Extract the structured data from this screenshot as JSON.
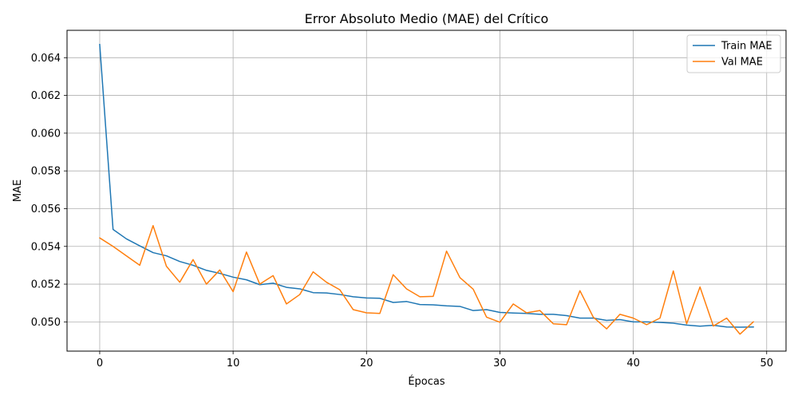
{
  "chart_data": {
    "type": "line",
    "title": "Error Absoluto Medio (MAE) del Crítico",
    "xlabel": "Épocas",
    "ylabel": "MAE",
    "xlim": [
      -2.45,
      51.45
    ],
    "ylim": [
      0.04845,
      0.06545
    ],
    "xticks": [
      0,
      10,
      20,
      30,
      40,
      50
    ],
    "yticks": [
      0.05,
      0.052,
      0.054,
      0.056,
      0.058,
      0.06,
      0.062,
      0.064
    ],
    "xtick_labels": [
      "0",
      "10",
      "20",
      "30",
      "40",
      "50"
    ],
    "ytick_labels": [
      "0.050",
      "0.052",
      "0.054",
      "0.056",
      "0.058",
      "0.060",
      "0.062",
      "0.064"
    ],
    "grid": true,
    "legend_position": "top-right",
    "series": [
      {
        "name": "Train MAE",
        "color": "#1f77b4",
        "x": [
          0,
          1,
          2,
          3,
          4,
          5,
          6,
          7,
          8,
          9,
          10,
          11,
          12,
          13,
          14,
          15,
          16,
          17,
          18,
          19,
          20,
          21,
          22,
          23,
          24,
          25,
          26,
          27,
          28,
          29,
          30,
          31,
          32,
          33,
          34,
          35,
          36,
          37,
          38,
          39,
          40,
          41,
          42,
          43,
          44,
          45,
          46,
          47,
          48,
          49
        ],
        "values": [
          0.0647,
          0.0549,
          0.0544,
          0.05403,
          0.05367,
          0.0535,
          0.0532,
          0.053,
          0.05273,
          0.05257,
          0.05237,
          0.05223,
          0.05197,
          0.05205,
          0.05183,
          0.05175,
          0.05155,
          0.05153,
          0.05145,
          0.05133,
          0.05127,
          0.05125,
          0.05103,
          0.05108,
          0.05092,
          0.0509,
          0.05085,
          0.05082,
          0.0506,
          0.05065,
          0.0505,
          0.05047,
          0.05045,
          0.0504,
          0.0504,
          0.05033,
          0.0502,
          0.0502,
          0.05008,
          0.05012,
          0.05,
          0.05,
          0.04997,
          0.04993,
          0.04983,
          0.04977,
          0.04982,
          0.04973,
          0.04972,
          0.04973
        ]
      },
      {
        "name": "Val MAE",
        "color": "#ff7f0e",
        "x": [
          0,
          1,
          2,
          3,
          4,
          5,
          6,
          7,
          8,
          9,
          10,
          11,
          12,
          13,
          14,
          15,
          16,
          17,
          18,
          19,
          20,
          21,
          22,
          23,
          24,
          25,
          26,
          27,
          28,
          29,
          30,
          31,
          32,
          33,
          34,
          35,
          36,
          37,
          38,
          39,
          40,
          41,
          42,
          43,
          44,
          45,
          46,
          47,
          48,
          49
        ],
        "values": [
          0.05445,
          0.054,
          0.0535,
          0.053,
          0.0551,
          0.05295,
          0.0521,
          0.0533,
          0.052,
          0.05275,
          0.0516,
          0.0537,
          0.052,
          0.05245,
          0.05095,
          0.05145,
          0.05265,
          0.0521,
          0.0517,
          0.05065,
          0.05048,
          0.05045,
          0.0525,
          0.05175,
          0.05133,
          0.05135,
          0.05375,
          0.05235,
          0.05173,
          0.05025,
          0.04998,
          0.05095,
          0.05048,
          0.0506,
          0.0499,
          0.04985,
          0.05165,
          0.05025,
          0.04963,
          0.0504,
          0.0502,
          0.04985,
          0.0502,
          0.0527,
          0.0499,
          0.05185,
          0.04978,
          0.0502,
          0.04935,
          0.05
        ]
      }
    ]
  }
}
